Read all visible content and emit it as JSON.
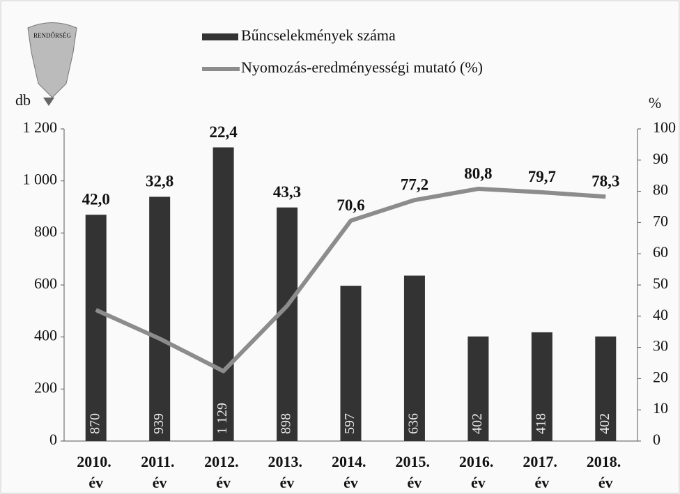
{
  "logo": {
    "text": "RENDŐRSÉG"
  },
  "chart_data": {
    "type": "bar-line",
    "legend": "top",
    "y_label": "db",
    "y2_label": "%",
    "categories": [
      "2010. év",
      "2011. év",
      "2012. év",
      "2013. év",
      "2014. év",
      "2015. év",
      "2016. év",
      "2017. év",
      "2018. év"
    ],
    "series": [
      {
        "name": "Bűncselekmények száma",
        "color": "#333333",
        "type": "bar",
        "values": [
          870,
          939,
          1129,
          898,
          597,
          636,
          402,
          418,
          402
        ],
        "value_labels": [
          "870",
          "939",
          "1 129",
          "898",
          "597",
          "636",
          "402",
          "418",
          "402"
        ]
      },
      {
        "name": "Nyomozás-eredményességi mutató (%)",
        "color": "#8c8c8c",
        "type": "line",
        "axis": "y2",
        "values": [
          42.0,
          32.8,
          22.4,
          43.3,
          70.6,
          77.2,
          80.8,
          79.7,
          78.3
        ],
        "value_labels": [
          "42,0",
          "32,8",
          "22,4",
          "43,3",
          "70,6",
          "77,2",
          "80,8",
          "79,7",
          "78,3"
        ]
      }
    ],
    "ylim": [
      0,
      1200
    ],
    "yticks": [
      0,
      200,
      400,
      600,
      800,
      {
        "value": 1000,
        "label": "1 000"
      },
      {
        "value": 1200,
        "label": "1 200"
      }
    ],
    "y2lim": [
      0,
      100
    ],
    "y2ticks": [
      0,
      10,
      20,
      30,
      40,
      50,
      60,
      70,
      80,
      90,
      100
    ]
  }
}
